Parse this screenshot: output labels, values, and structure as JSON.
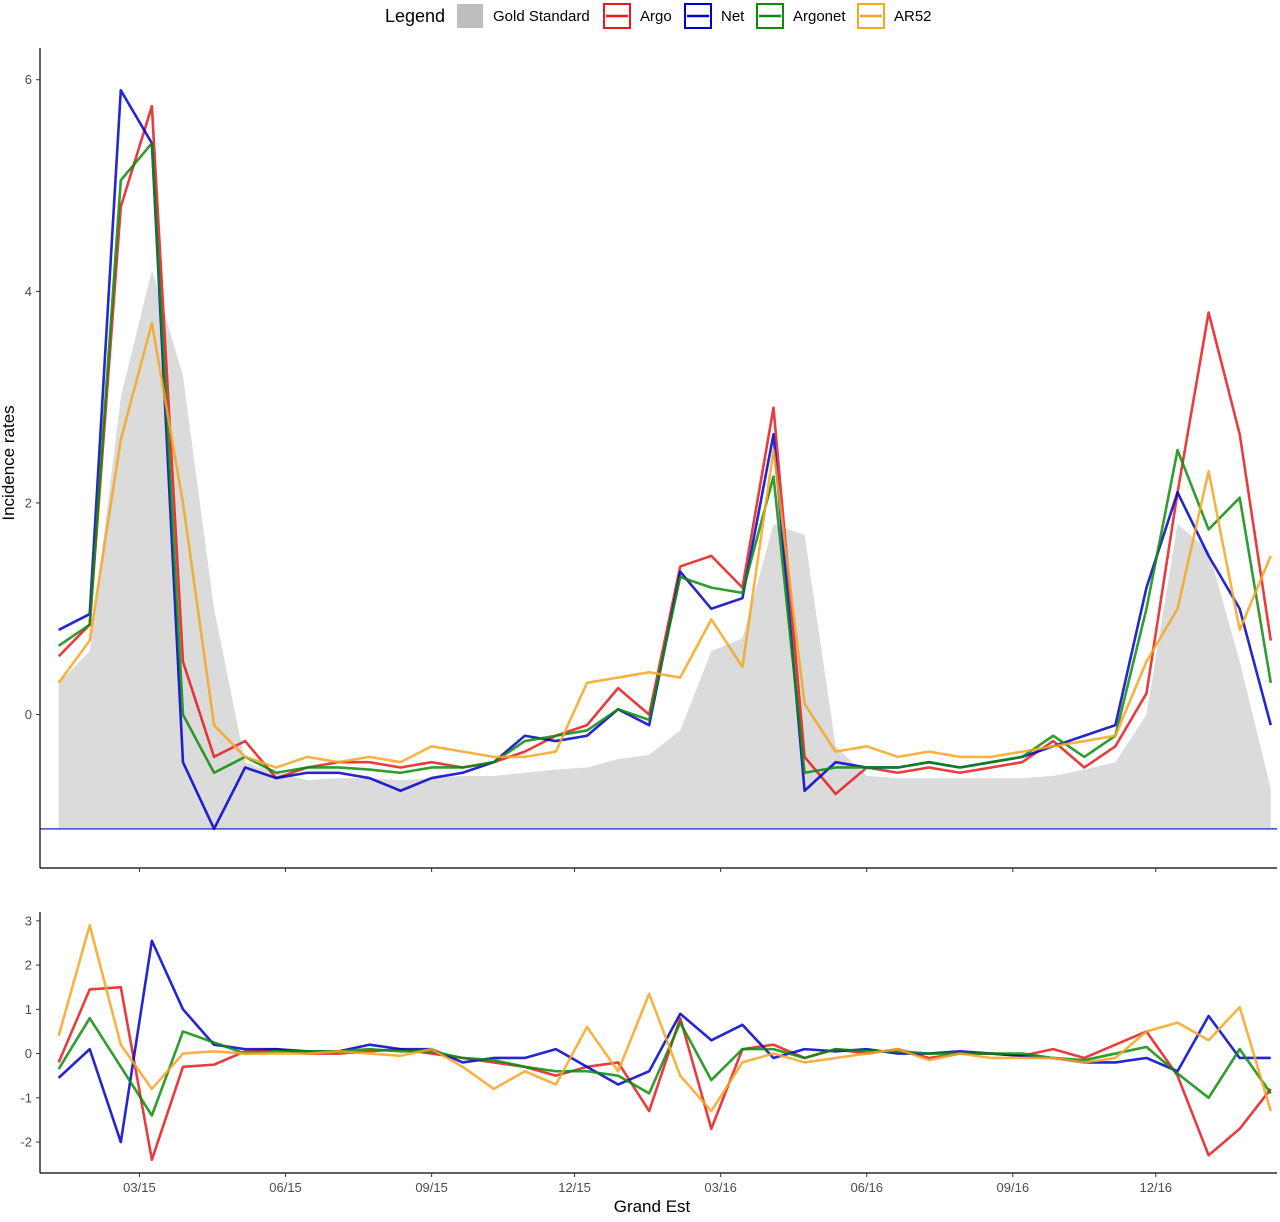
{
  "legend": {
    "title": "Legend",
    "items": [
      {
        "label": "Gold Standard",
        "color": "#bebebe",
        "kind": "fill"
      },
      {
        "label": "Argo",
        "color": "#e41a1c",
        "kind": "line"
      },
      {
        "label": "Net",
        "color": "#0000c8",
        "kind": "line"
      },
      {
        "label": "Argonet",
        "color": "#0a8c0a",
        "kind": "line"
      },
      {
        "label": "AR52",
        "color": "#f5a623",
        "kind": "line"
      }
    ]
  },
  "chart_data": [
    {
      "type": "line",
      "panel": "top",
      "ylabel": "Incidence rates",
      "xlabel": "",
      "y_ticks": [
        0,
        2,
        4,
        6
      ],
      "ylim": [
        -1.45,
        6.3
      ],
      "x_ticks": [
        2.6,
        7.3,
        12.0,
        16.6,
        21.3,
        26.0,
        30.7,
        35.3
      ],
      "x_ticks_labels_shown": false,
      "xlim": [
        -0.6,
        39.2
      ],
      "grid": false,
      "legend_position": "top",
      "gold_floor": -1.08,
      "series": [
        {
          "name": "Gold Standard",
          "color": "#bebebe",
          "kind": "area",
          "x": [
            0,
            1,
            2,
            3,
            4,
            5,
            6,
            7,
            8,
            9,
            10,
            11,
            12,
            13,
            14,
            15,
            16,
            17,
            18,
            19,
            20,
            21,
            22,
            23,
            24,
            25,
            26,
            27,
            28,
            29,
            30,
            31,
            32,
            33,
            34,
            35,
            36,
            37,
            38,
            39
          ],
          "y": [
            0.3,
            0.6,
            3.0,
            4.2,
            3.2,
            1.0,
            -0.45,
            -0.55,
            -0.62,
            -0.6,
            -0.6,
            -0.62,
            -0.6,
            -0.58,
            -0.58,
            -0.55,
            -0.52,
            -0.5,
            -0.42,
            -0.38,
            -0.15,
            0.6,
            0.72,
            1.8,
            1.7,
            -0.3,
            -0.58,
            -0.6,
            -0.6,
            -0.6,
            -0.6,
            -0.6,
            -0.58,
            -0.52,
            -0.45,
            0.0,
            1.8,
            1.55,
            0.5,
            -0.7
          ]
        },
        {
          "name": "Argo",
          "color": "#e41a1c",
          "kind": "line",
          "x": [
            0,
            1,
            2,
            3,
            4,
            5,
            6,
            7,
            8,
            9,
            10,
            11,
            12,
            13,
            14,
            15,
            16,
            17,
            18,
            19,
            20,
            21,
            22,
            23,
            24,
            25,
            26,
            27,
            28,
            29,
            30,
            31,
            32,
            33,
            34,
            35,
            36,
            37,
            38,
            39
          ],
          "y": [
            0.55,
            0.85,
            4.8,
            5.75,
            0.5,
            -0.4,
            -0.25,
            -0.6,
            -0.5,
            -0.45,
            -0.45,
            -0.5,
            -0.45,
            -0.5,
            -0.45,
            -0.35,
            -0.2,
            -0.1,
            0.25,
            0.0,
            1.4,
            1.5,
            1.2,
            2.9,
            -0.4,
            -0.75,
            -0.5,
            -0.55,
            -0.5,
            -0.55,
            -0.5,
            -0.45,
            -0.25,
            -0.5,
            -0.3,
            0.2,
            2.1,
            3.8,
            2.65,
            0.7
          ]
        },
        {
          "name": "Net",
          "color": "#0000c8",
          "kind": "line",
          "x": [
            0,
            1,
            2,
            3,
            4,
            5,
            6,
            7,
            8,
            9,
            10,
            11,
            12,
            13,
            14,
            15,
            16,
            17,
            18,
            19,
            20,
            21,
            22,
            23,
            24,
            25,
            26,
            27,
            28,
            29,
            30,
            31,
            32,
            33,
            34,
            35,
            36,
            37,
            38,
            39
          ],
          "y": [
            0.8,
            0.95,
            5.9,
            5.4,
            -0.45,
            -1.08,
            -0.5,
            -0.6,
            -0.55,
            -0.55,
            -0.6,
            -0.72,
            -0.6,
            -0.55,
            -0.45,
            -0.2,
            -0.25,
            -0.2,
            0.05,
            -0.1,
            1.35,
            1.0,
            1.1,
            2.65,
            -0.72,
            -0.45,
            -0.5,
            -0.5,
            -0.45,
            -0.5,
            -0.45,
            -0.4,
            -0.3,
            -0.2,
            -0.1,
            1.2,
            2.1,
            1.5,
            1.0,
            -0.1
          ]
        },
        {
          "name": "Argonet",
          "color": "#0a8c0a",
          "kind": "line",
          "x": [
            0,
            1,
            2,
            3,
            4,
            5,
            6,
            7,
            8,
            9,
            10,
            11,
            12,
            13,
            14,
            15,
            16,
            17,
            18,
            19,
            20,
            21,
            22,
            23,
            24,
            25,
            26,
            27,
            28,
            29,
            30,
            31,
            32,
            33,
            34,
            35,
            36,
            37,
            38,
            39
          ],
          "y": [
            0.65,
            0.85,
            5.05,
            5.4,
            0.0,
            -0.55,
            -0.4,
            -0.55,
            -0.5,
            -0.5,
            -0.52,
            -0.55,
            -0.5,
            -0.5,
            -0.45,
            -0.25,
            -0.2,
            -0.15,
            0.05,
            -0.05,
            1.3,
            1.2,
            1.15,
            2.25,
            -0.55,
            -0.5,
            -0.5,
            -0.5,
            -0.45,
            -0.5,
            -0.45,
            -0.4,
            -0.2,
            -0.4,
            -0.2,
            1.0,
            2.5,
            1.75,
            2.05,
            0.3
          ]
        },
        {
          "name": "AR52",
          "color": "#f5a623",
          "kind": "line",
          "x": [
            0,
            1,
            2,
            3,
            4,
            5,
            6,
            7,
            8,
            9,
            10,
            11,
            12,
            13,
            14,
            15,
            16,
            17,
            18,
            19,
            20,
            21,
            22,
            23,
            24,
            25,
            26,
            27,
            28,
            29,
            30,
            31,
            32,
            33,
            34,
            35,
            36,
            37,
            38,
            39
          ],
          "y": [
            0.3,
            0.7,
            2.6,
            3.7,
            2.0,
            -0.1,
            -0.4,
            -0.5,
            -0.4,
            -0.45,
            -0.4,
            -0.45,
            -0.3,
            -0.35,
            -0.4,
            -0.4,
            -0.35,
            0.3,
            0.35,
            0.4,
            0.35,
            0.9,
            0.45,
            2.5,
            0.1,
            -0.35,
            -0.3,
            -0.4,
            -0.35,
            -0.4,
            -0.4,
            -0.35,
            -0.3,
            -0.25,
            -0.2,
            0.5,
            1.0,
            2.3,
            0.8,
            1.5
          ]
        }
      ]
    },
    {
      "type": "line",
      "panel": "bottom",
      "xlabel": "Grand Est",
      "ylabel": "",
      "y_ticks": [
        -2,
        -1,
        0,
        1,
        2,
        3
      ],
      "ylim": [
        -2.7,
        3.2
      ],
      "x_ticks": [
        2.6,
        7.3,
        12.0,
        16.6,
        21.3,
        26.0,
        30.7,
        35.3
      ],
      "x_tick_labels": [
        "03/15",
        "06/15",
        "09/15",
        "12/15",
        "03/16",
        "06/16",
        "09/16",
        "12/16"
      ],
      "xlim": [
        -0.6,
        39.2
      ],
      "grid": false,
      "series": [
        {
          "name": "Argo",
          "color": "#e41a1c",
          "x": [
            0,
            1,
            2,
            3,
            4,
            5,
            6,
            7,
            8,
            9,
            10,
            11,
            12,
            13,
            14,
            15,
            16,
            17,
            18,
            19,
            20,
            21,
            22,
            23,
            24,
            25,
            26,
            27,
            28,
            29,
            30,
            31,
            32,
            33,
            34,
            35,
            36,
            37,
            38,
            39
          ],
          "y": [
            -0.2,
            1.45,
            1.5,
            -2.4,
            -0.3,
            -0.25,
            0.05,
            0.1,
            0.0,
            0.0,
            0.05,
            0.1,
            0.0,
            -0.1,
            -0.2,
            -0.3,
            -0.5,
            -0.3,
            -0.2,
            -1.3,
            0.8,
            -1.7,
            0.1,
            0.2,
            -0.1,
            0.1,
            0.0,
            0.1,
            -0.1,
            0.0,
            0.0,
            -0.05,
            0.1,
            -0.1,
            0.2,
            0.5,
            -0.5,
            -2.3,
            -1.7,
            -0.8
          ]
        },
        {
          "name": "Net",
          "color": "#0000c8",
          "x": [
            0,
            1,
            2,
            3,
            4,
            5,
            6,
            7,
            8,
            9,
            10,
            11,
            12,
            13,
            14,
            15,
            16,
            17,
            18,
            19,
            20,
            21,
            22,
            23,
            24,
            25,
            26,
            27,
            28,
            29,
            30,
            31,
            32,
            33,
            34,
            35,
            36,
            37,
            38,
            39
          ],
          "y": [
            -0.55,
            0.1,
            -2.0,
            2.55,
            1.0,
            0.2,
            0.1,
            0.1,
            0.05,
            0.05,
            0.2,
            0.1,
            0.1,
            -0.2,
            -0.1,
            -0.1,
            0.1,
            -0.3,
            -0.7,
            -0.4,
            0.9,
            0.3,
            0.65,
            -0.1,
            0.1,
            0.05,
            0.1,
            0.0,
            0.0,
            0.05,
            0.0,
            -0.05,
            -0.1,
            -0.2,
            -0.2,
            -0.1,
            -0.4,
            0.85,
            -0.1,
            -0.1
          ]
        },
        {
          "name": "Argonet",
          "color": "#0a8c0a",
          "x": [
            0,
            1,
            2,
            3,
            4,
            5,
            6,
            7,
            8,
            9,
            10,
            11,
            12,
            13,
            14,
            15,
            16,
            17,
            18,
            19,
            20,
            21,
            22,
            23,
            24,
            25,
            26,
            27,
            28,
            29,
            30,
            31,
            32,
            33,
            34,
            35,
            36,
            37,
            38,
            39
          ],
          "y": [
            -0.35,
            0.8,
            -0.3,
            -1.4,
            0.5,
            0.25,
            0.0,
            0.05,
            0.05,
            0.05,
            0.1,
            0.05,
            0.05,
            -0.1,
            -0.15,
            -0.3,
            -0.4,
            -0.4,
            -0.5,
            -0.9,
            0.7,
            -0.6,
            0.1,
            0.1,
            -0.1,
            0.1,
            0.05,
            0.05,
            0.0,
            0.0,
            0.0,
            0.0,
            -0.1,
            -0.15,
            0.0,
            0.15,
            -0.45,
            -1.0,
            0.1,
            -0.9
          ]
        },
        {
          "name": "AR52",
          "color": "#f5a623",
          "x": [
            0,
            1,
            2,
            3,
            4,
            5,
            6,
            7,
            8,
            9,
            10,
            11,
            12,
            13,
            14,
            15,
            16,
            17,
            18,
            19,
            20,
            21,
            22,
            23,
            24,
            25,
            26,
            27,
            28,
            29,
            30,
            31,
            32,
            33,
            34,
            35,
            36,
            37,
            38,
            39
          ],
          "y": [
            0.4,
            2.9,
            0.2,
            -0.8,
            0.0,
            0.05,
            0.0,
            0.0,
            0.0,
            0.05,
            0.0,
            -0.05,
            0.1,
            -0.3,
            -0.8,
            -0.4,
            -0.7,
            0.6,
            -0.4,
            1.35,
            -0.5,
            -1.3,
            -0.2,
            0.0,
            -0.2,
            -0.1,
            0.0,
            0.1,
            -0.15,
            0.0,
            -0.1,
            -0.1,
            -0.1,
            -0.2,
            -0.1,
            0.5,
            0.7,
            0.3,
            1.05,
            -1.3
          ]
        }
      ]
    }
  ]
}
